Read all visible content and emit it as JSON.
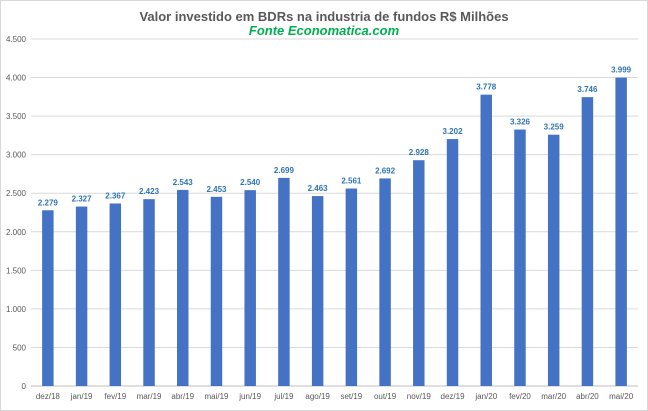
{
  "chart_data": {
    "type": "bar",
    "title": "Valor investido em BDRs na industria de fundos R$ Milhões",
    "subtitle": "Fonte Economatica.com",
    "categories": [
      "dez/18",
      "jan/19",
      "fev/19",
      "mar/19",
      "abr/19",
      "mai/19",
      "jun/19",
      "jul/19",
      "ago/19",
      "set/19",
      "out/19",
      "nov/19",
      "dez/19",
      "jan/20",
      "fev/20",
      "mar/20",
      "abr/20",
      "mai/20"
    ],
    "values": [
      2279,
      2327,
      2367,
      2423,
      2543,
      2453,
      2540,
      2699,
      2463,
      2561,
      2692,
      2928,
      3202,
      3778,
      3326,
      3259,
      3746,
      3999
    ],
    "value_labels": [
      "2.279",
      "2.327",
      "2.367",
      "2.423",
      "2.543",
      "2.453",
      "2.540",
      "2.699",
      "2.463",
      "2.561",
      "2.692",
      "2.928",
      "3.202",
      "3.778",
      "3.326",
      "3.259",
      "3.746",
      "3.999"
    ],
    "ylim": [
      0,
      4500
    ],
    "yticks": [
      0,
      500,
      1000,
      1500,
      2000,
      2500,
      3000,
      3500,
      4000,
      4500
    ],
    "ytick_labels": [
      "0",
      "500",
      "1.000",
      "1.500",
      "2.000",
      "2.500",
      "3.000",
      "3.500",
      "4.000",
      "4.500"
    ],
    "xlabel": "",
    "ylabel": "",
    "grid": true,
    "colors": {
      "bar": "#4472c4",
      "data_label": "#2e75b6",
      "grid": "#d9d9d9",
      "title": "#595959",
      "subtitle": "#00b050"
    }
  }
}
